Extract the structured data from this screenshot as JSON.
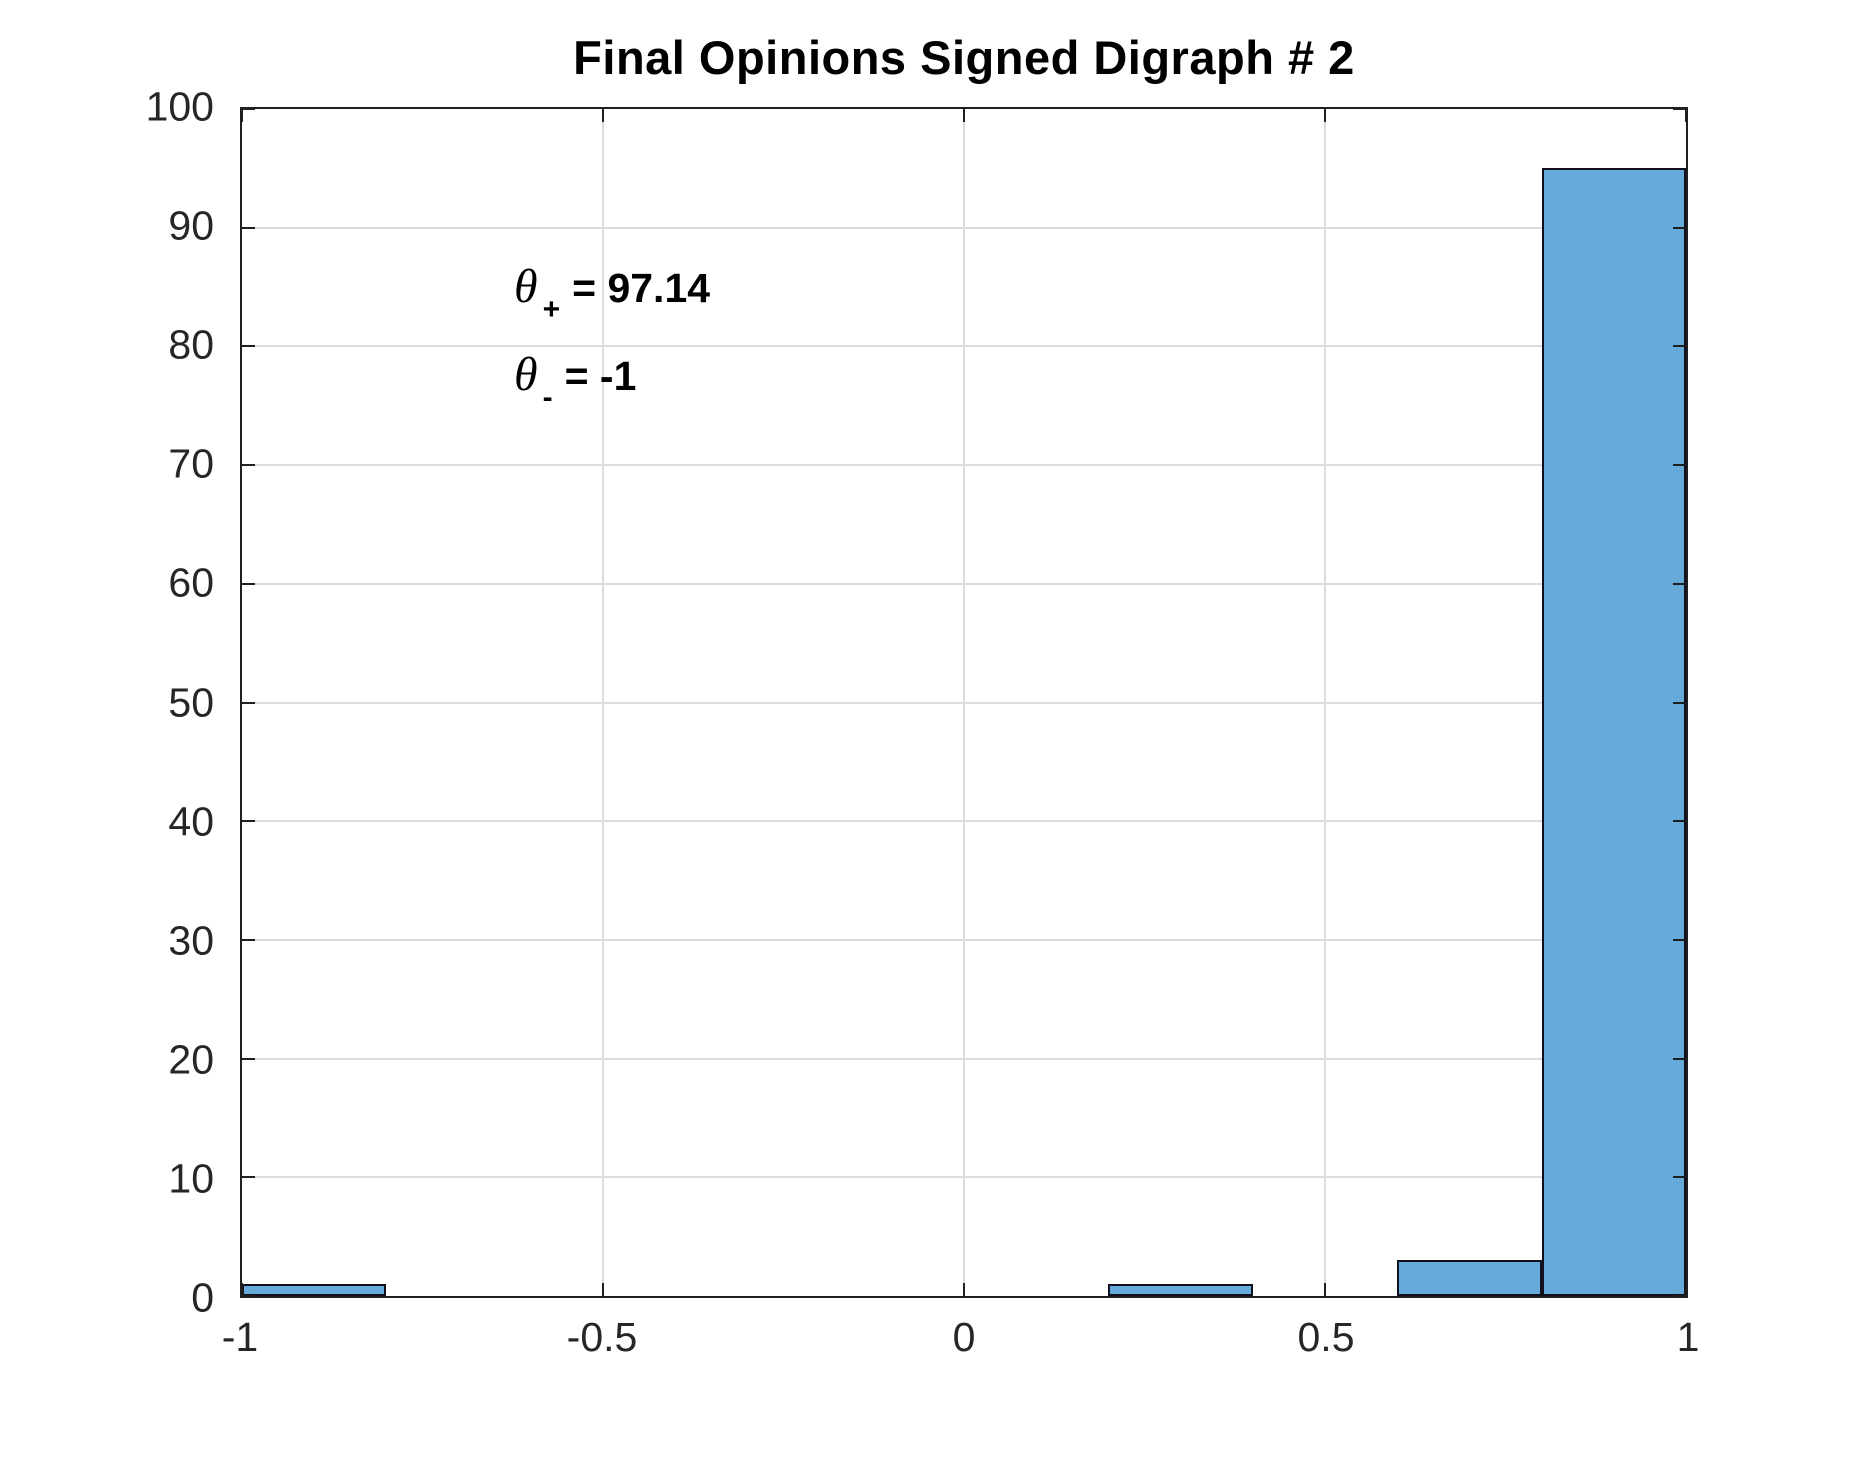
{
  "title": "Final Opinions Signed Digraph # 2",
  "annotations": [
    {
      "symbol": "θ",
      "sub": "+",
      "rest": "= 97.14"
    },
    {
      "symbol": "θ",
      "sub": "-",
      "rest": "= -1"
    }
  ],
  "chart_data": {
    "type": "bar",
    "title": "Final Opinions Signed Digraph # 2",
    "xlabel": "",
    "ylabel": "",
    "xlim": [
      -1,
      1
    ],
    "ylim": [
      0,
      100
    ],
    "x_ticks": [
      -1,
      -0.5,
      0,
      0.5,
      1
    ],
    "x_tick_labels": [
      "-1",
      "-0.5",
      "0",
      "0.5",
      "1"
    ],
    "y_ticks": [
      0,
      10,
      20,
      30,
      40,
      50,
      60,
      70,
      80,
      90,
      100
    ],
    "y_tick_labels": [
      "0",
      "10",
      "20",
      "30",
      "40",
      "50",
      "60",
      "70",
      "80",
      "90",
      "100"
    ],
    "bin_width": 0.2,
    "bins": [
      {
        "x0": -1.0,
        "x1": -0.8,
        "count": 1
      },
      {
        "x0": 0.2,
        "x1": 0.4,
        "count": 1
      },
      {
        "x0": 0.6,
        "x1": 0.8,
        "count": 3
      },
      {
        "x0": 0.8,
        "x1": 1.0,
        "count": 95
      }
    ],
    "grid": true,
    "legend": "none",
    "colors": {
      "bar_fill": "#65AAD8",
      "bar_edge": "#10101E",
      "grid": "#DCDCDC",
      "axis": "#1F1F1F",
      "tick_label": "#262626",
      "title": "#000000"
    }
  }
}
